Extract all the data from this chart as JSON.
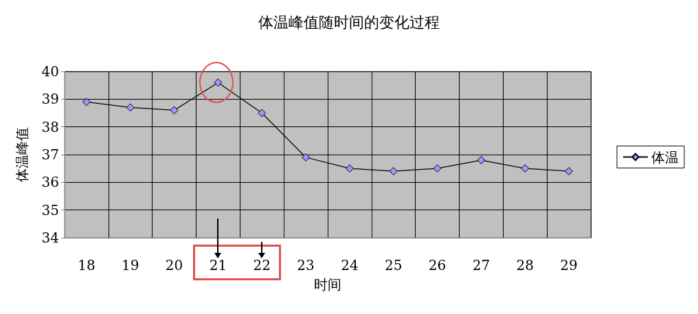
{
  "chart_data": {
    "type": "line",
    "title": "体温峰值随时间的变化过程",
    "xlabel": "时间",
    "ylabel": "体温峰值",
    "categories": [
      "18",
      "19",
      "20",
      "21",
      "22",
      "23",
      "24",
      "25",
      "26",
      "27",
      "28",
      "29"
    ],
    "series": [
      {
        "name": "体温",
        "color": "#9999ff",
        "values": [
          38.9,
          38.7,
          38.6,
          39.6,
          38.5,
          36.9,
          36.5,
          36.4,
          36.5,
          36.8,
          36.5,
          36.4
        ]
      }
    ],
    "ylim": [
      34,
      40
    ],
    "yticks": [
      34,
      35,
      36,
      37,
      38,
      39,
      40
    ],
    "grid": true,
    "legend": "right",
    "marker": "diamond",
    "line_style": "solid"
  }
}
